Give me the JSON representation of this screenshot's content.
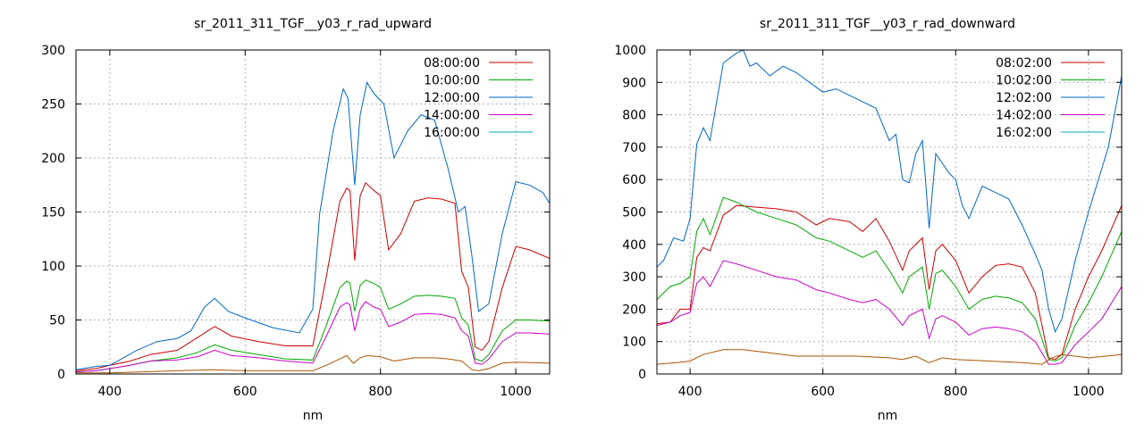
{
  "chart_data": [
    {
      "type": "line",
      "title": "sr_2011_311_TGF__y03_r_rad_upward",
      "xlabel": "nm",
      "ylabel": "",
      "xlim": [
        350,
        1050
      ],
      "ylim": [
        0,
        300
      ],
      "xticks": [
        400,
        600,
        800,
        1000
      ],
      "yticks": [
        0,
        50,
        100,
        150,
        200,
        250,
        300
      ],
      "grid": true,
      "legend_position": "top-right",
      "series": [
        {
          "name": "08:00:00",
          "color": "#cc0000",
          "x": [
            350,
            380,
            400,
            430,
            460,
            500,
            530,
            555,
            580,
            620,
            660,
            700,
            720,
            740,
            750,
            755,
            762,
            770,
            778,
            790,
            800,
            812,
            830,
            850,
            870,
            890,
            910,
            920,
            930,
            940,
            950,
            960,
            980,
            1000,
            1020,
            1050
          ],
          "y": [
            3,
            5,
            8,
            12,
            18,
            22,
            34,
            44,
            35,
            30,
            26,
            26,
            90,
            160,
            172,
            170,
            105,
            165,
            177,
            170,
            165,
            115,
            130,
            160,
            163,
            162,
            158,
            95,
            80,
            25,
            22,
            30,
            80,
            118,
            115,
            107
          ]
        },
        {
          "name": "10:00:00",
          "color": "#00aa00",
          "x": [
            350,
            380,
            400,
            430,
            460,
            500,
            530,
            555,
            580,
            620,
            660,
            700,
            720,
            740,
            750,
            755,
            762,
            770,
            778,
            790,
            800,
            812,
            830,
            850,
            870,
            890,
            910,
            920,
            930,
            940,
            950,
            960,
            980,
            1000,
            1020,
            1050
          ],
          "y": [
            2,
            3,
            5,
            8,
            12,
            15,
            20,
            27,
            22,
            18,
            14,
            13,
            45,
            80,
            86,
            84,
            58,
            82,
            87,
            84,
            80,
            60,
            65,
            72,
            73,
            72,
            70,
            52,
            45,
            14,
            12,
            18,
            40,
            50,
            50,
            49
          ]
        },
        {
          "name": "12:00:00",
          "color": "#0066cc",
          "x": [
            350,
            380,
            400,
            420,
            440,
            470,
            500,
            520,
            540,
            555,
            575,
            600,
            640,
            680,
            700,
            710,
            730,
            745,
            752,
            762,
            770,
            780,
            790,
            805,
            820,
            840,
            860,
            880,
            900,
            915,
            925,
            935,
            945,
            960,
            980,
            1000,
            1020,
            1040,
            1050
          ],
          "y": [
            4,
            7,
            8,
            15,
            22,
            30,
            33,
            40,
            62,
            70,
            58,
            52,
            43,
            38,
            60,
            148,
            225,
            264,
            255,
            175,
            240,
            270,
            260,
            250,
            200,
            225,
            240,
            235,
            190,
            150,
            155,
            110,
            58,
            65,
            130,
            178,
            175,
            168,
            158
          ]
        },
        {
          "name": "14:00:00",
          "color": "#cc00cc",
          "x": [
            350,
            380,
            400,
            430,
            460,
            500,
            530,
            555,
            580,
            620,
            660,
            700,
            720,
            740,
            750,
            755,
            762,
            770,
            778,
            790,
            800,
            812,
            830,
            850,
            870,
            890,
            910,
            920,
            930,
            940,
            950,
            960,
            980,
            1000,
            1020,
            1050
          ],
          "y": [
            2,
            3,
            5,
            8,
            12,
            13,
            16,
            22,
            17,
            15,
            12,
            10,
            35,
            62,
            66,
            64,
            40,
            60,
            67,
            62,
            60,
            44,
            48,
            55,
            56,
            55,
            52,
            40,
            35,
            10,
            9,
            14,
            30,
            38,
            38,
            37
          ]
        },
        {
          "name": "16:00:00",
          "color": "#00aacc",
          "x": [
            350,
            400,
            500,
            600,
            700,
            750,
            760,
            780,
            800,
            900,
            940,
            960,
            1000,
            1050
          ],
          "y": [
            0,
            0,
            0,
            0,
            0,
            0,
            0,
            0,
            0,
            0,
            0,
            0,
            0,
            0
          ]
        },
        {
          "name": "",
          "color": "#aa5500",
          "x": [
            350,
            400,
            450,
            500,
            550,
            600,
            650,
            700,
            720,
            740,
            750,
            760,
            770,
            780,
            800,
            820,
            850,
            880,
            900,
            920,
            935,
            945,
            960,
            980,
            1000,
            1050
          ],
          "y": [
            1,
            1,
            2,
            3,
            4,
            3,
            3,
            3,
            8,
            14,
            17,
            10,
            15,
            17,
            16,
            12,
            15,
            15,
            14,
            12,
            4,
            3,
            5,
            10,
            11,
            10
          ]
        }
      ]
    },
    {
      "type": "line",
      "title": "sr_2011_311_TGF__y03_r_rad_downward",
      "xlabel": "nm",
      "ylabel": "",
      "xlim": [
        350,
        1050
      ],
      "ylim": [
        0,
        1000
      ],
      "xticks": [
        400,
        600,
        800,
        1000
      ],
      "yticks": [
        0,
        100,
        200,
        300,
        400,
        500,
        600,
        700,
        800,
        900,
        1000
      ],
      "grid": true,
      "legend_position": "top-right",
      "series": [
        {
          "name": "08:02:00",
          "color": "#cc0000",
          "x": [
            350,
            370,
            385,
            400,
            410,
            420,
            430,
            450,
            470,
            500,
            530,
            560,
            590,
            610,
            640,
            660,
            680,
            700,
            720,
            730,
            750,
            760,
            770,
            780,
            800,
            820,
            840,
            860,
            880,
            900,
            920,
            940,
            950,
            960,
            980,
            1000,
            1020,
            1050
          ],
          "y": [
            155,
            160,
            200,
            200,
            360,
            390,
            380,
            490,
            520,
            515,
            510,
            500,
            460,
            480,
            470,
            440,
            480,
            410,
            320,
            380,
            420,
            260,
            380,
            400,
            350,
            250,
            300,
            335,
            340,
            330,
            250,
            50,
            45,
            60,
            200,
            300,
            380,
            520
          ]
        },
        {
          "name": "10:02:00",
          "color": "#00aa00",
          "x": [
            350,
            370,
            385,
            400,
            410,
            420,
            430,
            450,
            470,
            500,
            530,
            560,
            590,
            610,
            640,
            660,
            680,
            700,
            720,
            730,
            750,
            760,
            770,
            780,
            800,
            820,
            840,
            860,
            880,
            900,
            920,
            940,
            950,
            960,
            980,
            1000,
            1020,
            1050
          ],
          "y": [
            230,
            270,
            280,
            300,
            440,
            480,
            430,
            545,
            530,
            500,
            480,
            460,
            420,
            410,
            380,
            360,
            380,
            320,
            250,
            300,
            330,
            200,
            310,
            320,
            270,
            200,
            230,
            240,
            235,
            220,
            170,
            45,
            40,
            50,
            150,
            220,
            300,
            440
          ]
        },
        {
          "name": "12:02:00",
          "color": "#0066cc",
          "x": [
            350,
            360,
            375,
            390,
            400,
            410,
            420,
            430,
            450,
            470,
            480,
            490,
            500,
            520,
            540,
            560,
            580,
            600,
            620,
            640,
            660,
            680,
            700,
            710,
            720,
            730,
            740,
            750,
            760,
            770,
            780,
            790,
            800,
            810,
            820,
            840,
            860,
            880,
            900,
            920,
            930,
            940,
            950,
            960,
            980,
            1000,
            1030,
            1050
          ],
          "y": [
            330,
            350,
            420,
            410,
            480,
            710,
            760,
            720,
            960,
            990,
            1000,
            950,
            960,
            920,
            950,
            930,
            900,
            870,
            880,
            860,
            840,
            820,
            720,
            740,
            600,
            590,
            680,
            720,
            450,
            680,
            650,
            620,
            600,
            520,
            480,
            580,
            560,
            540,
            460,
            370,
            320,
            200,
            130,
            170,
            350,
            500,
            700,
            920
          ]
        },
        {
          "name": "14:02:00",
          "color": "#cc00cc",
          "x": [
            350,
            370,
            385,
            400,
            410,
            420,
            430,
            450,
            470,
            500,
            530,
            560,
            590,
            610,
            640,
            660,
            680,
            700,
            720,
            730,
            750,
            760,
            770,
            780,
            800,
            820,
            840,
            860,
            880,
            900,
            920,
            940,
            950,
            960,
            980,
            1000,
            1020,
            1050
          ],
          "y": [
            150,
            160,
            180,
            190,
            280,
            300,
            270,
            350,
            340,
            320,
            300,
            290,
            260,
            250,
            230,
            220,
            230,
            200,
            150,
            180,
            200,
            110,
            170,
            180,
            160,
            120,
            140,
            145,
            140,
            130,
            100,
            30,
            30,
            35,
            90,
            130,
            170,
            270
          ]
        },
        {
          "name": "16:02:00",
          "color": "#00aacc",
          "x": [
            350,
            400,
            500,
            600,
            700,
            800,
            900,
            940,
            960,
            1000,
            1050
          ],
          "y": [
            0,
            0,
            0,
            0,
            0,
            0,
            0,
            0,
            0,
            0,
            0
          ]
        },
        {
          "name": "",
          "color": "#aa5500",
          "x": [
            350,
            380,
            400,
            420,
            450,
            480,
            520,
            560,
            600,
            650,
            700,
            720,
            740,
            760,
            780,
            800,
            850,
            900,
            930,
            945,
            960,
            1000,
            1050
          ],
          "y": [
            30,
            35,
            40,
            60,
            75,
            75,
            65,
            55,
            55,
            55,
            50,
            45,
            55,
            35,
            50,
            45,
            40,
            35,
            30,
            50,
            60,
            50,
            60
          ]
        }
      ]
    }
  ]
}
